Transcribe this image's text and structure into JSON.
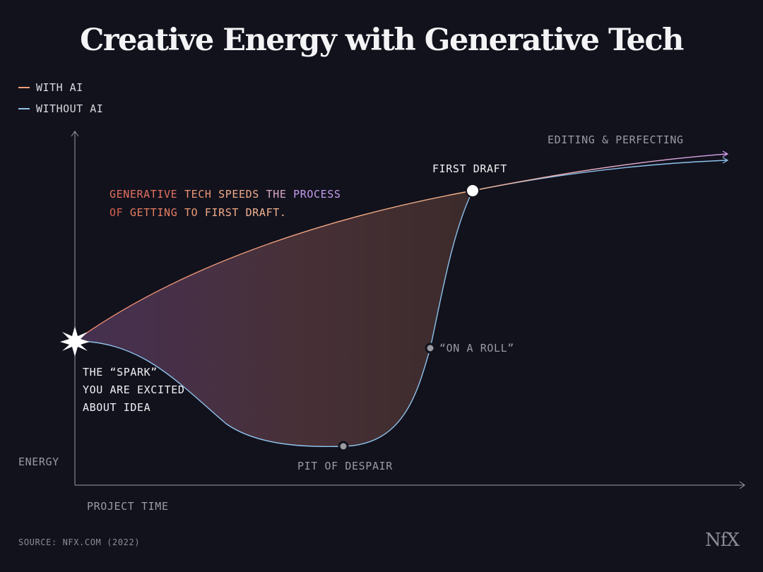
{
  "title": "Creative Energy with Generative Tech",
  "legend": [
    {
      "label": "WITH AI",
      "color": "#f2a07b"
    },
    {
      "label": "WITHOUT AI",
      "color": "#8fc2ec"
    }
  ],
  "axes": {
    "xlabel": "PROJECT TIME",
    "ylabel": "ENERGY"
  },
  "annotations": {
    "spark": [
      "THE “SPARK”",
      "YOU ARE EXCITED",
      "ABOUT IDEA"
    ],
    "pit": "PIT OF DESPAIR",
    "roll": "“ON A ROLL”",
    "first_draft": "FIRST DRAFT",
    "editing": "EDITING & PERFECTING",
    "speeds_line1": [
      "GENERATIVE",
      "TECH",
      "SPEEDS",
      "THE",
      "PROCESS"
    ],
    "speeds_line2": [
      "OF",
      "GETTING",
      "TO",
      "FIRST",
      "DRAFT."
    ]
  },
  "colors": {
    "with_ai": "#f2a07b",
    "without_ai": "#8fc2ec",
    "gradient_start": "#e06a5a",
    "gradient_mid": "#f0a87c",
    "gradient_end": "#c79bec"
  },
  "source": "SOURCE: NFX.COM (2022)",
  "logo": "NfX",
  "chart_data": {
    "type": "line",
    "title": "Creative Energy with Generative Tech",
    "xlabel": "PROJECT TIME",
    "ylabel": "ENERGY",
    "axis_ticks": "none",
    "legend_position": "top-left",
    "series": [
      {
        "name": "WITH AI",
        "shape": "rises steadily from the spark directly to the first draft, then continues gently upward"
      },
      {
        "name": "WITHOUT AI",
        "shape": "drops from the spark to the pit of despair, climbs steeply while on a roll, meets the first draft, then continues gently upward"
      }
    ],
    "key_points": [
      "THE “SPARK”",
      "PIT OF DESPAIR",
      "“ON A ROLL”",
      "FIRST DRAFT",
      "EDITING & PERFECTING"
    ],
    "shaded_region": "area between the two curves from the spark to the first draft"
  }
}
